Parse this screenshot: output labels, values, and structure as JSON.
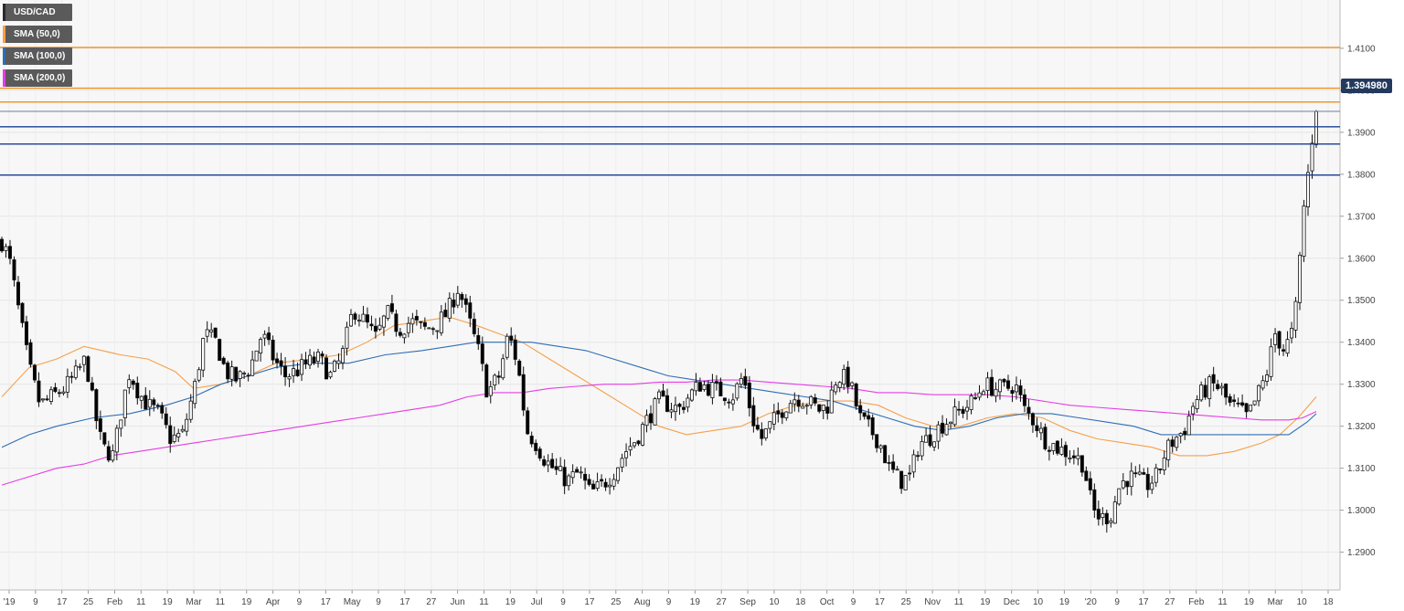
{
  "legend": {
    "symbol": "USD/CAD",
    "sma50": "SMA (50,0)",
    "sma100": "SMA (100,0)",
    "sma200": "SMA (200,0)"
  },
  "colors": {
    "sma50": "#f5a04a",
    "sma100": "#2f6db4",
    "sma200": "#e63ce6",
    "resistance": "#f09020",
    "support": "#1a3f96",
    "candle_up": "#ffffff",
    "candle_down": "#000000",
    "price_tag": "#233a5e"
  },
  "last_price": "1.394980",
  "chart_data": {
    "type": "candlestick",
    "ylim": [
      1.281,
      1.4215
    ],
    "y_ticks": [
      "1.2900",
      "1.3000",
      "1.3100",
      "1.3200",
      "1.3300",
      "1.3400",
      "1.3500",
      "1.3600",
      "1.3700",
      "1.3800",
      "1.3900",
      "1.4000",
      "1.4100"
    ],
    "x_ticks": [
      "'19",
      "9",
      "17",
      "25",
      "Feb",
      "11",
      "19",
      "Mar",
      "11",
      "19",
      "Apr",
      "9",
      "17",
      "May",
      "9",
      "17",
      "27",
      "Jun",
      "11",
      "19",
      "Jul",
      "9",
      "17",
      "25",
      "Aug",
      "9",
      "19",
      "27",
      "Sep",
      "10",
      "18",
      "Oct",
      "9",
      "17",
      "25",
      "Nov",
      "11",
      "19",
      "Dec",
      "10",
      "19",
      "'20",
      "9",
      "17",
      "27",
      "Feb",
      "11",
      "19",
      "Mar",
      "10",
      "18"
    ],
    "horizontal_levels": [
      {
        "value": 1.4102,
        "kind": "resistance"
      },
      {
        "value": 1.4005,
        "kind": "resistance"
      },
      {
        "value": 1.3972,
        "kind": "resistance"
      },
      {
        "value": 1.3913,
        "kind": "support"
      },
      {
        "value": 1.3872,
        "kind": "support"
      },
      {
        "value": 1.3798,
        "kind": "support"
      }
    ],
    "last_price": 1.39498,
    "close_path": [
      [
        0,
        1.364
      ],
      [
        8,
        1.36
      ],
      [
        18,
        1.348
      ],
      [
        30,
        1.334
      ],
      [
        42,
        1.325
      ],
      [
        55,
        1.327
      ],
      [
        68,
        1.329
      ],
      [
        80,
        1.332
      ],
      [
        92,
        1.336
      ],
      [
        100,
        1.325
      ],
      [
        110,
        1.315
      ],
      [
        122,
        1.313
      ],
      [
        132,
        1.325
      ],
      [
        140,
        1.333
      ],
      [
        150,
        1.328
      ],
      [
        160,
        1.325
      ],
      [
        172,
        1.323
      ],
      [
        185,
        1.317
      ],
      [
        198,
        1.318
      ],
      [
        212,
        1.33
      ],
      [
        222,
        1.342
      ],
      [
        235,
        1.34
      ],
      [
        245,
        1.333
      ],
      [
        258,
        1.331
      ],
      [
        272,
        1.334
      ],
      [
        285,
        1.342
      ],
      [
        298,
        1.336
      ],
      [
        310,
        1.332
      ],
      [
        322,
        1.333
      ],
      [
        335,
        1.335
      ],
      [
        348,
        1.336
      ],
      [
        360,
        1.332
      ],
      [
        372,
        1.336
      ],
      [
        385,
        1.348
      ],
      [
        397,
        1.345
      ],
      [
        410,
        1.341
      ],
      [
        422,
        1.347
      ],
      [
        435,
        1.343
      ],
      [
        448,
        1.345
      ],
      [
        462,
        1.343
      ],
      [
        475,
        1.344
      ],
      [
        488,
        1.347
      ],
      [
        500,
        1.353
      ],
      [
        512,
        1.345
      ],
      [
        522,
        1.338
      ],
      [
        532,
        1.328
      ],
      [
        545,
        1.332
      ],
      [
        555,
        1.342
      ],
      [
        565,
        1.335
      ],
      [
        575,
        1.319
      ],
      [
        585,
        1.316
      ],
      [
        595,
        1.312
      ],
      [
        608,
        1.309
      ],
      [
        620,
        1.307
      ],
      [
        632,
        1.309
      ],
      [
        645,
        1.304
      ],
      [
        658,
        1.306
      ],
      [
        670,
        1.309
      ],
      [
        683,
        1.314
      ],
      [
        695,
        1.317
      ],
      [
        708,
        1.322
      ],
      [
        720,
        1.326
      ],
      [
        732,
        1.325
      ],
      [
        742,
        1.324
      ],
      [
        752,
        1.327
      ],
      [
        765,
        1.33
      ],
      [
        778,
        1.329
      ],
      [
        790,
        1.328
      ],
      [
        800,
        1.327
      ],
      [
        812,
        1.332
      ],
      [
        822,
        1.322
      ],
      [
        832,
        1.317
      ],
      [
        845,
        1.321
      ],
      [
        858,
        1.325
      ],
      [
        870,
        1.327
      ],
      [
        882,
        1.326
      ],
      [
        895,
        1.324
      ],
      [
        905,
        1.325
      ],
      [
        915,
        1.332
      ],
      [
        928,
        1.331
      ],
      [
        940,
        1.322
      ],
      [
        952,
        1.319
      ],
      [
        962,
        1.316
      ],
      [
        972,
        1.31
      ],
      [
        985,
        1.307
      ],
      [
        995,
        1.308
      ],
      [
        1005,
        1.316
      ],
      [
        1015,
        1.317
      ],
      [
        1028,
        1.32
      ],
      [
        1040,
        1.322
      ],
      [
        1052,
        1.324
      ],
      [
        1065,
        1.326
      ],
      [
        1075,
        1.33
      ],
      [
        1088,
        1.329
      ],
      [
        1100,
        1.329
      ],
      [
        1110,
        1.33
      ],
      [
        1120,
        1.324
      ],
      [
        1132,
        1.321
      ],
      [
        1142,
        1.317
      ],
      [
        1155,
        1.315
      ],
      [
        1165,
        1.314
      ],
      [
        1175,
        1.313
      ],
      [
        1185,
        1.311
      ],
      [
        1195,
        1.3
      ],
      [
        1205,
        1.298
      ],
      [
        1215,
        1.299
      ],
      [
        1225,
        1.306
      ],
      [
        1235,
        1.308
      ],
      [
        1245,
        1.307
      ],
      [
        1255,
        1.306
      ],
      [
        1265,
        1.308
      ],
      [
        1275,
        1.314
      ],
      [
        1285,
        1.317
      ],
      [
        1295,
        1.319
      ],
      [
        1305,
        1.325
      ],
      [
        1315,
        1.328
      ],
      [
        1325,
        1.33
      ],
      [
        1335,
        1.329
      ],
      [
        1345,
        1.325
      ],
      [
        1355,
        1.324
      ],
      [
        1365,
        1.322
      ],
      [
        1375,
        1.327
      ],
      [
        1385,
        1.332
      ],
      [
        1395,
        1.342
      ],
      [
        1405,
        1.338
      ],
      [
        1415,
        1.343
      ],
      [
        1420,
        1.353
      ],
      [
        1425,
        1.37
      ],
      [
        1430,
        1.378
      ],
      [
        1435,
        1.388
      ],
      [
        1440,
        1.39498
      ]
    ],
    "series": [
      {
        "name": "SMA (50,0)",
        "points": [
          [
            0,
            1.327
          ],
          [
            30,
            1.334
          ],
          [
            60,
            1.336
          ],
          [
            90,
            1.339
          ],
          [
            130,
            1.337
          ],
          [
            160,
            1.336
          ],
          [
            190,
            1.333
          ],
          [
            210,
            1.329
          ],
          [
            240,
            1.33
          ],
          [
            270,
            1.332
          ],
          [
            300,
            1.335
          ],
          [
            340,
            1.336
          ],
          [
            370,
            1.337
          ],
          [
            400,
            1.34
          ],
          [
            430,
            1.344
          ],
          [
            460,
            1.345
          ],
          [
            490,
            1.346
          ],
          [
            520,
            1.344
          ],
          [
            545,
            1.342
          ],
          [
            570,
            1.34
          ],
          [
            600,
            1.336
          ],
          [
            630,
            1.332
          ],
          [
            660,
            1.328
          ],
          [
            690,
            1.324
          ],
          [
            720,
            1.32
          ],
          [
            750,
            1.318
          ],
          [
            780,
            1.319
          ],
          [
            810,
            1.32
          ],
          [
            840,
            1.323
          ],
          [
            870,
            1.325
          ],
          [
            900,
            1.326
          ],
          [
            930,
            1.326
          ],
          [
            960,
            1.325
          ],
          [
            990,
            1.322
          ],
          [
            1020,
            1.32
          ],
          [
            1050,
            1.32
          ],
          [
            1080,
            1.322
          ],
          [
            1110,
            1.323
          ],
          [
            1140,
            1.322
          ],
          [
            1170,
            1.319
          ],
          [
            1200,
            1.317
          ],
          [
            1230,
            1.316
          ],
          [
            1260,
            1.315
          ],
          [
            1290,
            1.313
          ],
          [
            1320,
            1.313
          ],
          [
            1350,
            1.314
          ],
          [
            1380,
            1.316
          ],
          [
            1400,
            1.318
          ],
          [
            1420,
            1.322
          ],
          [
            1440,
            1.327
          ]
        ]
      },
      {
        "name": "SMA (100,0)",
        "points": [
          [
            0,
            1.315
          ],
          [
            30,
            1.318
          ],
          [
            60,
            1.32
          ],
          [
            100,
            1.322
          ],
          [
            140,
            1.323
          ],
          [
            180,
            1.325
          ],
          [
            210,
            1.327
          ],
          [
            240,
            1.33
          ],
          [
            270,
            1.332
          ],
          [
            300,
            1.334
          ],
          [
            340,
            1.335
          ],
          [
            380,
            1.335
          ],
          [
            420,
            1.337
          ],
          [
            460,
            1.338
          ],
          [
            490,
            1.339
          ],
          [
            520,
            1.34
          ],
          [
            550,
            1.34
          ],
          [
            580,
            1.34
          ],
          [
            610,
            1.339
          ],
          [
            640,
            1.338
          ],
          [
            670,
            1.336
          ],
          [
            700,
            1.334
          ],
          [
            730,
            1.332
          ],
          [
            760,
            1.331
          ],
          [
            790,
            1.33
          ],
          [
            820,
            1.329
          ],
          [
            850,
            1.328
          ],
          [
            880,
            1.327
          ],
          [
            910,
            1.326
          ],
          [
            940,
            1.324
          ],
          [
            970,
            1.322
          ],
          [
            1000,
            1.32
          ],
          [
            1030,
            1.319
          ],
          [
            1060,
            1.32
          ],
          [
            1090,
            1.322
          ],
          [
            1120,
            1.323
          ],
          [
            1150,
            1.323
          ],
          [
            1180,
            1.322
          ],
          [
            1210,
            1.321
          ],
          [
            1240,
            1.32
          ],
          [
            1270,
            1.318
          ],
          [
            1300,
            1.318
          ],
          [
            1330,
            1.318
          ],
          [
            1360,
            1.318
          ],
          [
            1390,
            1.318
          ],
          [
            1410,
            1.318
          ],
          [
            1430,
            1.321
          ],
          [
            1440,
            1.323
          ]
        ]
      },
      {
        "name": "SMA (200,0)",
        "points": [
          [
            0,
            1.306
          ],
          [
            30,
            1.308
          ],
          [
            60,
            1.31
          ],
          [
            90,
            1.311
          ],
          [
            120,
            1.313
          ],
          [
            150,
            1.314
          ],
          [
            180,
            1.315
          ],
          [
            210,
            1.316
          ],
          [
            240,
            1.317
          ],
          [
            270,
            1.318
          ],
          [
            300,
            1.319
          ],
          [
            330,
            1.32
          ],
          [
            360,
            1.321
          ],
          [
            390,
            1.322
          ],
          [
            420,
            1.323
          ],
          [
            450,
            1.324
          ],
          [
            480,
            1.325
          ],
          [
            510,
            1.327
          ],
          [
            540,
            1.328
          ],
          [
            570,
            1.328
          ],
          [
            600,
            1.329
          ],
          [
            630,
            1.3295
          ],
          [
            660,
            1.33
          ],
          [
            690,
            1.33
          ],
          [
            720,
            1.3305
          ],
          [
            750,
            1.3305
          ],
          [
            780,
            1.331
          ],
          [
            810,
            1.331
          ],
          [
            840,
            1.3305
          ],
          [
            870,
            1.33
          ],
          [
            900,
            1.3295
          ],
          [
            930,
            1.329
          ],
          [
            960,
            1.328
          ],
          [
            990,
            1.328
          ],
          [
            1020,
            1.3275
          ],
          [
            1050,
            1.3275
          ],
          [
            1080,
            1.3275
          ],
          [
            1110,
            1.327
          ],
          [
            1140,
            1.326
          ],
          [
            1170,
            1.325
          ],
          [
            1200,
            1.3245
          ],
          [
            1230,
            1.324
          ],
          [
            1260,
            1.3235
          ],
          [
            1290,
            1.323
          ],
          [
            1320,
            1.3225
          ],
          [
            1350,
            1.322
          ],
          [
            1380,
            1.3215
          ],
          [
            1410,
            1.3215
          ],
          [
            1425,
            1.322
          ],
          [
            1440,
            1.3235
          ]
        ]
      }
    ],
    "xlabel": "",
    "ylabel": "",
    "title": "",
    "grid": true,
    "legend_position": "top-left"
  }
}
